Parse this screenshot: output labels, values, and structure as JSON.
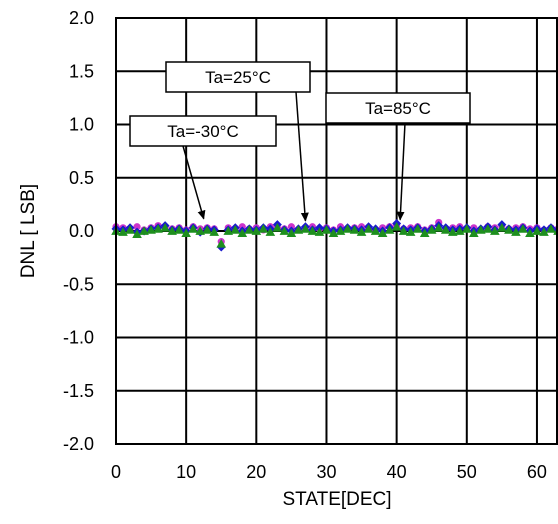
{
  "chart_data": {
    "type": "scatter",
    "xlabel": "STATE[DEC]",
    "ylabel": "DNL [ LSB]",
    "xlim": [
      0,
      63
    ],
    "ylim": [
      -2.0,
      2.0
    ],
    "x_ticks": [
      "0",
      "10",
      "20",
      "30",
      "40",
      "50",
      "60"
    ],
    "x_tick_values": [
      0,
      10,
      20,
      30,
      40,
      50,
      60
    ],
    "y_ticks": [
      "2.0",
      "1.5",
      "1.0",
      "0.5",
      "0.0",
      "-0.5",
      "-1.0",
      "-1.5",
      "-2.0"
    ],
    "y_tick_values": [
      2.0,
      1.5,
      1.0,
      0.5,
      0.0,
      -0.5,
      -1.0,
      -1.5,
      -2.0
    ],
    "grid": true,
    "series": [
      {
        "marker": "diamond",
        "color": "#1a1acc",
        "values": [
          0.02,
          0.01,
          0.03,
          -0.01,
          0.0,
          0.02,
          0.03,
          0.05,
          0.01,
          0.02,
          0.0,
          0.03,
          -0.01,
          0.02,
          0.01,
          -0.15,
          0.01,
          0.03,
          0.0,
          0.02,
          0.01,
          0.03,
          0.02,
          0.06,
          0.01,
          0.0,
          0.02,
          0.04,
          0.01,
          0.03,
          0.02,
          0.0,
          0.01,
          0.03,
          0.02,
          0.01,
          0.04,
          0.02,
          0.0,
          0.03,
          0.07,
          0.02,
          0.01,
          0.03,
          0.0,
          0.02,
          0.05,
          0.03,
          0.01,
          0.02,
          0.03,
          0.0,
          0.02,
          0.04,
          0.01,
          0.06,
          0.02,
          0.01,
          0.03,
          0.0,
          0.02,
          0.01,
          0.03,
          0.01
        ]
      },
      {
        "marker": "circle",
        "color": "#cc33cc",
        "values": [
          0.04,
          0.03,
          0.02,
          0.04,
          0.01,
          0.03,
          0.05,
          0.04,
          0.02,
          0.03,
          0.01,
          0.04,
          0.02,
          0.03,
          0.02,
          -0.1,
          0.03,
          0.02,
          0.04,
          0.02,
          0.03,
          0.01,
          0.04,
          0.03,
          0.02,
          0.04,
          0.01,
          0.03,
          0.04,
          0.02,
          0.03,
          0.01,
          0.04,
          0.02,
          0.03,
          0.04,
          0.02,
          0.01,
          0.03,
          0.04,
          0.05,
          0.02,
          0.03,
          0.04,
          0.01,
          0.03,
          0.08,
          0.02,
          0.03,
          0.04,
          0.02,
          0.03,
          0.01,
          0.04,
          0.03,
          0.05,
          0.02,
          0.03,
          0.04,
          0.02,
          0.03,
          0.01,
          0.03,
          0.02
        ]
      },
      {
        "marker": "triangle",
        "color": "#1e8f1e",
        "values": [
          0.0,
          -0.01,
          0.01,
          -0.03,
          0.0,
          0.01,
          0.02,
          0.03,
          0.0,
          0.01,
          -0.02,
          0.02,
          0.0,
          0.01,
          -0.01,
          -0.12,
          0.0,
          0.01,
          -0.02,
          0.01,
          0.0,
          0.02,
          -0.01,
          0.03,
          0.0,
          -0.02,
          0.01,
          0.02,
          0.0,
          -0.01,
          0.01,
          -0.02,
          0.0,
          0.02,
          0.01,
          -0.01,
          0.02,
          0.0,
          -0.02,
          0.01,
          0.04,
          0.0,
          -0.01,
          0.02,
          -0.02,
          0.01,
          0.03,
          0.01,
          -0.01,
          0.0,
          0.02,
          -0.02,
          0.01,
          0.02,
          0.0,
          0.03,
          0.01,
          -0.01,
          0.02,
          -0.02,
          0.0,
          -0.01,
          0.02,
          0.0
        ]
      }
    ],
    "annotations": [
      {
        "text": "Ta=25°C",
        "arrow_to": [
          27,
          0.03
        ]
      },
      {
        "text": "Ta=-30°C",
        "arrow_to": [
          12.5,
          0.05
        ]
      },
      {
        "text": "Ta=85°C",
        "arrow_to": [
          40.5,
          0.04
        ]
      }
    ]
  }
}
